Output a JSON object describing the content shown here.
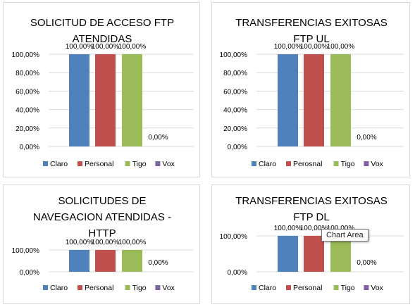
{
  "colors": {
    "Claro": "#4f81bd",
    "Personal": "#c0504d",
    "Tigo": "#9bbb59",
    "Vox": "#8064a2",
    "axis": "#262626",
    "grid": "#d9d9d9"
  },
  "chart_data": [
    {
      "type": "bar",
      "title": [
        "SOLICITUD DE ACCESO FTP",
        "ATENDIDAS"
      ],
      "series": [
        {
          "name": "Claro",
          "value": 100,
          "label": "100,00%"
        },
        {
          "name": "Personal",
          "value": 100,
          "label": "100,00%"
        },
        {
          "name": "Tigo",
          "value": 100,
          "label": "100,00%"
        },
        {
          "name": "Vox",
          "value": 0,
          "label": "0,00%"
        }
      ],
      "yticks": [
        "0,00%",
        "20,00%",
        "40,00%",
        "60,00%",
        "80,00%",
        "100,00%"
      ],
      "ylim": [
        0,
        100
      ],
      "legend": [
        "Claro",
        "Personal",
        "Tigo",
        "Vox"
      ],
      "legend_position": "bottom"
    },
    {
      "type": "bar",
      "title": [
        "TRANSFERENCIAS EXITOSAS",
        "FTP UL"
      ],
      "series": [
        {
          "name": "Claro",
          "value": 100,
          "label": "100,00%"
        },
        {
          "name": "Personal",
          "value": 100,
          "label": "100,00%"
        },
        {
          "name": "Tigo",
          "value": 100,
          "label": "100,00%"
        },
        {
          "name": "Vox",
          "value": 0,
          "label": "0,00%"
        }
      ],
      "yticks": [
        "0,00%",
        "20,00%",
        "40,00%",
        "60,00%",
        "80,00%",
        "100,00%"
      ],
      "ylim": [
        0,
        100
      ],
      "legend": [
        "Claro",
        "Perosnal",
        "Tigo",
        "Vox"
      ],
      "legend_position": "bottom"
    },
    {
      "type": "bar",
      "title": [
        "SOLICITUDES DE",
        "NAVEGACION ATENDIDAS -",
        "HTTP"
      ],
      "series": [
        {
          "name": "Claro",
          "value": 100,
          "label": "100,00%"
        },
        {
          "name": "Personal",
          "value": 100,
          "label": "100,00%"
        },
        {
          "name": "Tigo",
          "value": 100,
          "label": "100,00%"
        },
        {
          "name": "Vox",
          "value": 0,
          "label": "0,00%"
        }
      ],
      "yticks": [
        "0,00%",
        "100,00%"
      ],
      "ylim": [
        0,
        100
      ],
      "legend": [
        "Claro",
        "Personal",
        "Tigo",
        "Vox"
      ],
      "legend_position": "bottom"
    },
    {
      "type": "bar",
      "title": [
        "TRANSFERENCIAS EXITOSAS",
        "FTP DL"
      ],
      "series": [
        {
          "name": "Claro",
          "value": 100,
          "label": "100,00%"
        },
        {
          "name": "Personal",
          "value": 100,
          "label": "100,00%"
        },
        {
          "name": "Tigo",
          "value": 100,
          "label": "100,00%"
        },
        {
          "name": "Vox",
          "value": 0,
          "label": "0,00%"
        }
      ],
      "yticks": [
        "0,00%",
        "100,00%"
      ],
      "ylim": [
        0,
        100
      ],
      "legend": [
        "Claro",
        "Personal",
        "Tigo",
        "Vox"
      ],
      "legend_position": "bottom"
    }
  ],
  "tooltip": {
    "text": "Chart Area"
  }
}
